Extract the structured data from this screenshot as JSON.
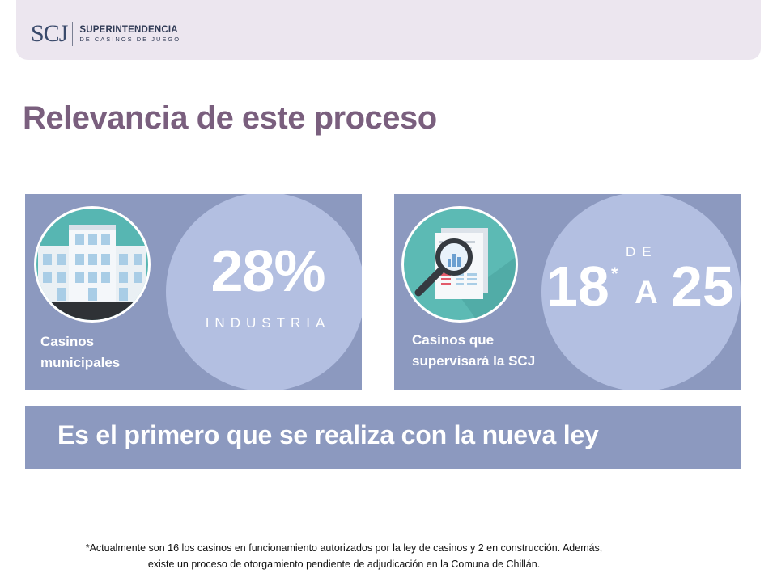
{
  "header": {
    "logo_mark": "SCJ",
    "logo_line1": "SUPERINTENDENCIA",
    "logo_line2": "DE CASINOS DE JUEGO"
  },
  "title": "Relevancia de este proceso",
  "left_panel": {
    "label_line1": "Casinos",
    "label_line2": "municipales",
    "percent": "28%",
    "percent_caption": "INDUSTRIA",
    "icon": "building-icon"
  },
  "right_panel": {
    "label_line1": "Casinos que",
    "label_line2": "supervisará la SCJ",
    "de": "DE",
    "from": "18",
    "asterisk": "*",
    "a": "A",
    "to": "25",
    "icon": "magnifier-report-icon"
  },
  "banner": "Es el primero que se realiza con la nueva ley",
  "footnote": {
    "line1": "*Actualmente son 16 los casinos en funcionamiento autorizados por la ley de casinos y 2 en construcción. Además,",
    "line2": "existe un proceso de otorgamiento pendiente de adjudicación en la Comuna de Chillán."
  },
  "colors": {
    "panel": "#8c99bf",
    "circle": "#b3bfe1",
    "title": "#7a5f7e",
    "header": "#ece6ef",
    "icon_bg": "#57b6b2"
  }
}
